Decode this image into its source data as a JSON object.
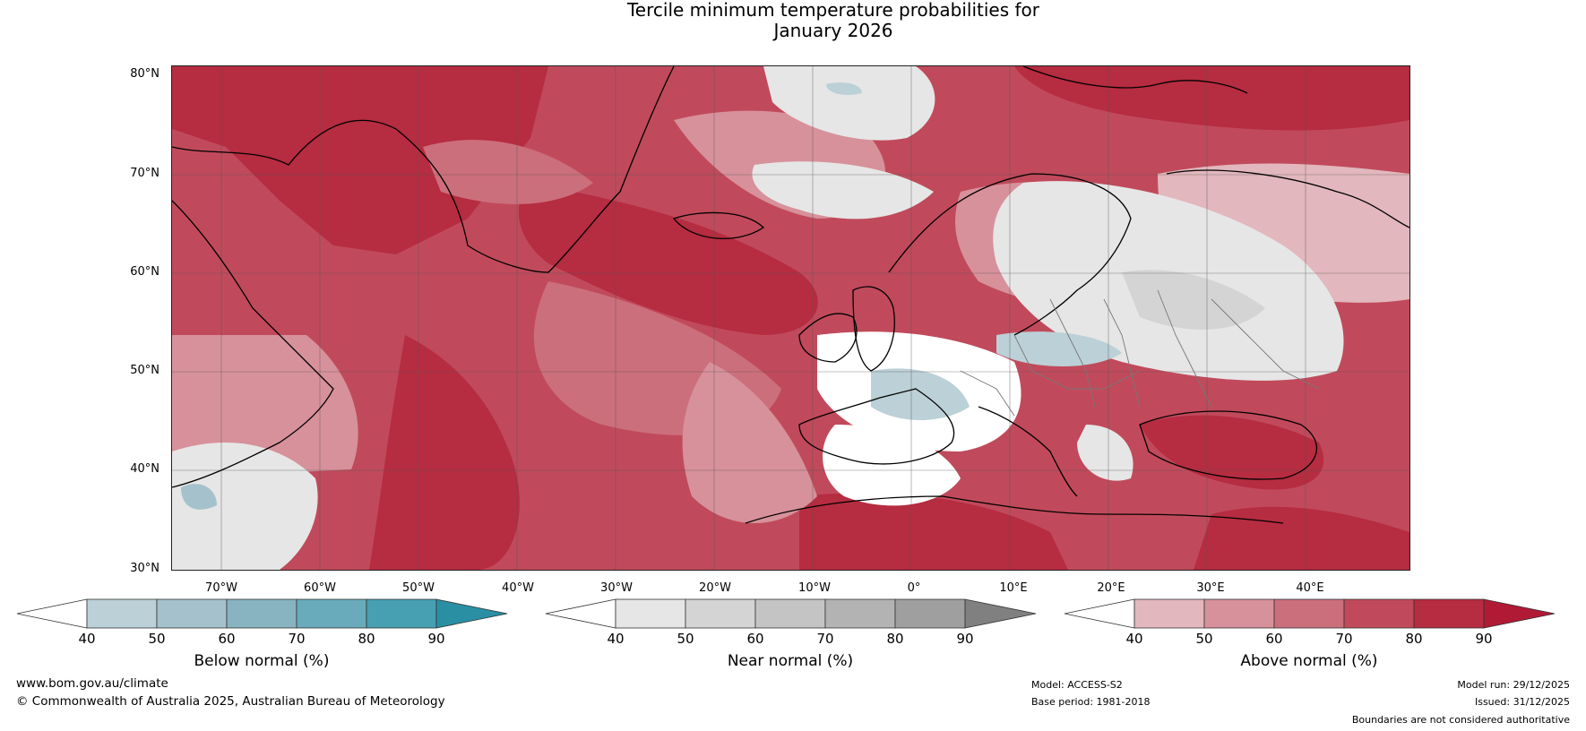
{
  "title_line1": "Tercile minimum temperature probabilities for",
  "title_line2": "January 2026",
  "lat_ticks": [
    "80°N",
    "70°N",
    "60°N",
    "50°N",
    "40°N",
    "30°N"
  ],
  "lon_ticks": [
    "70°W",
    "60°W",
    "50°W",
    "40°W",
    "30°W",
    "20°W",
    "10°W",
    "0°",
    "10°E",
    "20°E",
    "30°E",
    "40°E"
  ],
  "colorbars": {
    "below": {
      "label": "Below normal (%)",
      "ticks": [
        "40",
        "50",
        "60",
        "70",
        "80",
        "90"
      ],
      "colors": [
        "#ffffff",
        "#bcd0d7",
        "#a5c2cc",
        "#88b3c1",
        "#6aabbb",
        "#46a0b1",
        "#2a8fa3"
      ]
    },
    "near": {
      "label": "Near normal (%)",
      "ticks": [
        "40",
        "50",
        "60",
        "70",
        "80",
        "90"
      ],
      "colors": [
        "#ffffff",
        "#e6e6e6",
        "#d4d4d4",
        "#c4c4c4",
        "#b3b3b3",
        "#9f9f9f",
        "#808080"
      ]
    },
    "above": {
      "label": "Above normal (%)",
      "ticks": [
        "40",
        "50",
        "60",
        "70",
        "80",
        "90"
      ],
      "colors": [
        "#ffffff",
        "#e2b7bd",
        "#d7919b",
        "#cc6f7c",
        "#c04a5b",
        "#b62c40",
        "#b01a35"
      ]
    }
  },
  "footer": {
    "website": "www.bom.gov.au/climate",
    "copyright": "© Commonwealth of Australia 2025, Australian Bureau of Meteorology",
    "model": "Model: ACCESS-S2",
    "base_period": "Base period: 1981-2018",
    "model_run": "Model run: 29/12/2025",
    "issued": "Issued: 31/12/2025",
    "disclaimer": "Boundaries are not considered authoritative"
  },
  "colors": {
    "red_dark": "#b01a35",
    "red_mid": "#c04a5b",
    "red_light": "#d7919b",
    "pink": "#e2b7bd",
    "grey_light": "#e6e6e6",
    "grey_mid": "#d4d4d4",
    "blue_light": "#bcd0d7"
  }
}
